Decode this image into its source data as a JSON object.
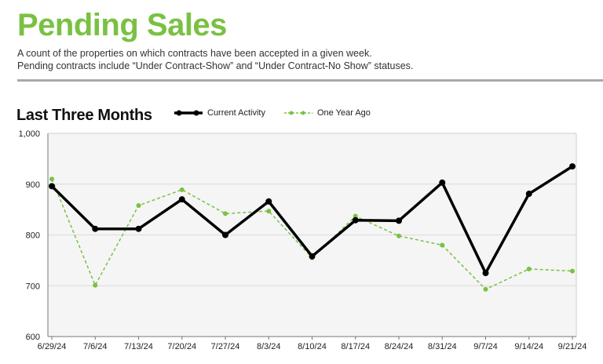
{
  "header": {
    "title": "Pending Sales",
    "description_line1": "A count of the properties on which contracts have been accepted in a given week.",
    "description_line2": "Pending contracts include “Under Contract-Show” and “Under Contract-No Show” statuses."
  },
  "colors": {
    "title_green": "#7ac143",
    "current_series": "#000000",
    "previous_series": "#7ac143",
    "plot_background": "#f5f5f5",
    "gridline": "#dcdcdc",
    "divider": "#a7a9ac"
  },
  "chart_data": {
    "type": "line",
    "title": "Last Three Months",
    "x": [
      "6/29/24",
      "7/6/24",
      "7/13/24",
      "7/20/24",
      "7/27/24",
      "8/3/24",
      "8/10/24",
      "8/17/24",
      "8/24/24",
      "8/31/24",
      "9/7/24",
      "9/14/24",
      "9/21/24"
    ],
    "series": [
      {
        "name": "Current Activity",
        "style": "solid",
        "values": [
          896,
          812,
          812,
          870,
          800,
          866,
          758,
          829,
          828,
          903,
          725,
          881,
          935
        ]
      },
      {
        "name": "One Year Ago",
        "style": "dashed",
        "values": [
          910,
          701,
          858,
          889,
          842,
          847,
          755,
          837,
          798,
          780,
          693,
          733,
          729
        ]
      }
    ],
    "ylim": [
      600,
      1000
    ],
    "yticks": [
      "600",
      "700",
      "800",
      "900",
      "1,000"
    ],
    "grid": true,
    "legend_position": "top-center"
  }
}
